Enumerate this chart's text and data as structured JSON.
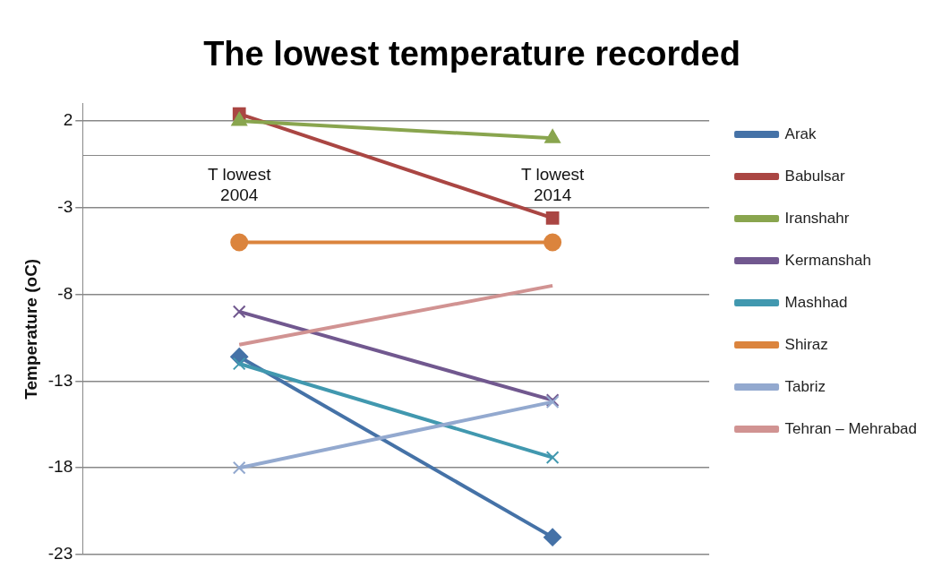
{
  "chart_data": {
    "type": "line",
    "title": "The lowest temperature recorded",
    "ylabel": "Temperature (oC)",
    "categories": [
      "T lowest\n2004",
      "T lowest\n2014"
    ],
    "ylim": [
      -23,
      3
    ],
    "yticks": [
      2,
      -3,
      -8,
      -13,
      -18,
      -23
    ],
    "grid": "y",
    "legend": "right",
    "series": [
      {
        "name": "Arak",
        "color": "#4572a7",
        "marker": "diamond",
        "values": [
          -11.6,
          -22
        ]
      },
      {
        "name": "Babulsar",
        "color": "#aa4643",
        "marker": "square",
        "values": [
          2.4,
          -3.6
        ]
      },
      {
        "name": "Iranshahr",
        "color": "#89a54e",
        "marker": "triangle",
        "values": [
          2,
          1
        ]
      },
      {
        "name": "Kermanshah",
        "color": "#71588f",
        "marker": "cross",
        "values": [
          -9,
          -14.1
        ]
      },
      {
        "name": "Mashhad",
        "color": "#4198af",
        "marker": "cross",
        "values": [
          -12,
          -17.4
        ]
      },
      {
        "name": "Shiraz",
        "color": "#db843d",
        "marker": "circle",
        "values": [
          -5,
          -5
        ]
      },
      {
        "name": "Tabriz",
        "color": "#93a9cf",
        "marker": "cross",
        "values": [
          -18,
          -14.2
        ]
      },
      {
        "name": "Tehran – Mehrabad",
        "color": "#d19392",
        "marker": "none",
        "values": [
          -10.9,
          -7.5
        ]
      }
    ]
  }
}
